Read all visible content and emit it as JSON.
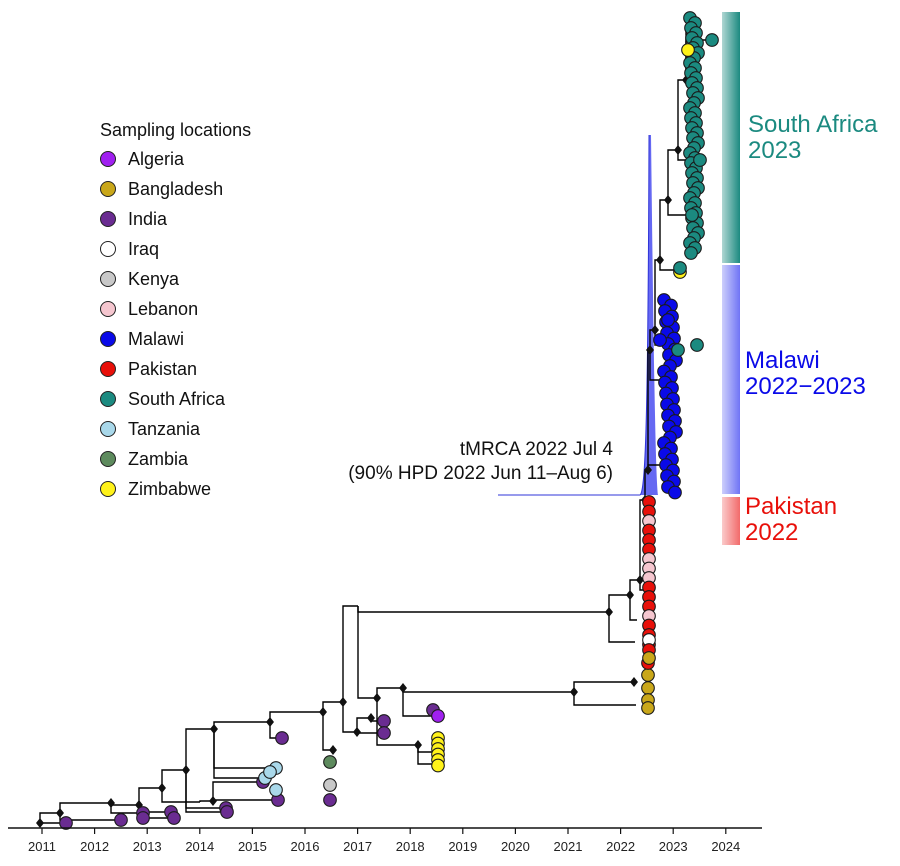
{
  "legend": {
    "title": "Sampling locations",
    "items": [
      {
        "label": "Algeria",
        "color": "#a020f0"
      },
      {
        "label": "Bangladesh",
        "color": "#c9a71a"
      },
      {
        "label": "India",
        "color": "#6a2c91"
      },
      {
        "label": "Iraq",
        "color": "#ffffff"
      },
      {
        "label": "Kenya",
        "color": "#c8c8c8"
      },
      {
        "label": "Lebanon",
        "color": "#f5c6cf"
      },
      {
        "label": "Malawi",
        "color": "#0a0ae8"
      },
      {
        "label": "Pakistan",
        "color": "#e8100a"
      },
      {
        "label": "South Africa",
        "color": "#1b8a80"
      },
      {
        "label": "Tanzania",
        "color": "#a9d8ea"
      },
      {
        "label": "Zambia",
        "color": "#5d8a5d"
      },
      {
        "label": "Zimbabwe",
        "color": "#fff21a"
      }
    ]
  },
  "annotation": {
    "line1": "tMRCA 2022 Jul 4",
    "line2": "(90% HPD 2022 Jun 11–Aug 6)"
  },
  "clades": [
    {
      "line1": "South Africa",
      "line2": "2023",
      "color": "#1b8a80"
    },
    {
      "line1": "Malawi",
      "line2": "2022−2023",
      "color": "#0a0ae8"
    },
    {
      "line1": "Pakistan",
      "line2": "2022",
      "color": "#e8100a"
    }
  ],
  "x_axis": {
    "ticks": [
      "2011",
      "2012",
      "2013",
      "2014",
      "2015",
      "2016",
      "2017",
      "2018",
      "2019",
      "2020",
      "2021",
      "2022",
      "2023",
      "2024"
    ]
  }
}
